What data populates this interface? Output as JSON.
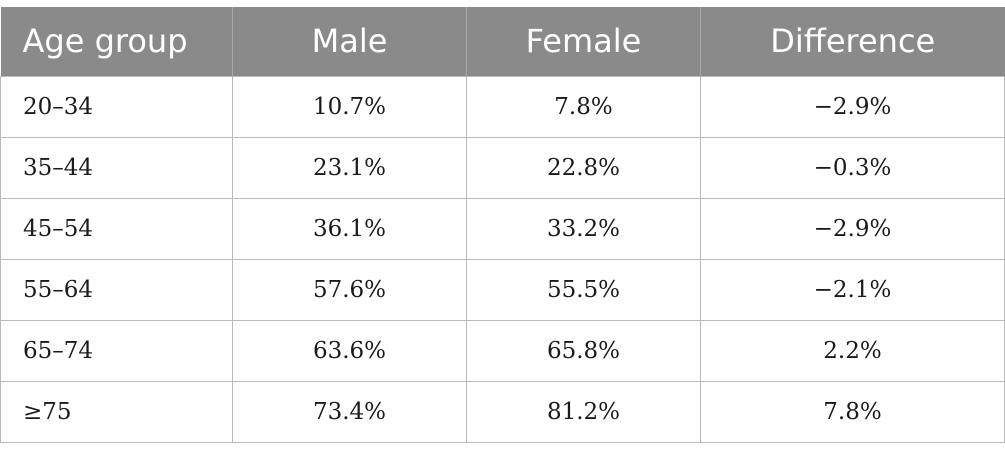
{
  "table": {
    "headers": [
      "Age group",
      "Male",
      "Female",
      "Difference"
    ],
    "rows": [
      [
        "20–34",
        "10.7%",
        "7.8%",
        "−2.9%"
      ],
      [
        "35–44",
        "23.1%",
        "22.8%",
        "−0.3%"
      ],
      [
        "45–54",
        "36.1%",
        "33.2%",
        "−2.9%"
      ],
      [
        "55–64",
        "57.6%",
        "55.5%",
        "−2.1%"
      ],
      [
        "65–74",
        "63.6%",
        "65.8%",
        "2.2%"
      ],
      [
        "≥75",
        "73.4%",
        "81.2%",
        "7.8%"
      ]
    ]
  },
  "colors": {
    "header_bg": "#8a8a8a",
    "header_text": "#ffffff",
    "grid": "#b9b9b9"
  }
}
